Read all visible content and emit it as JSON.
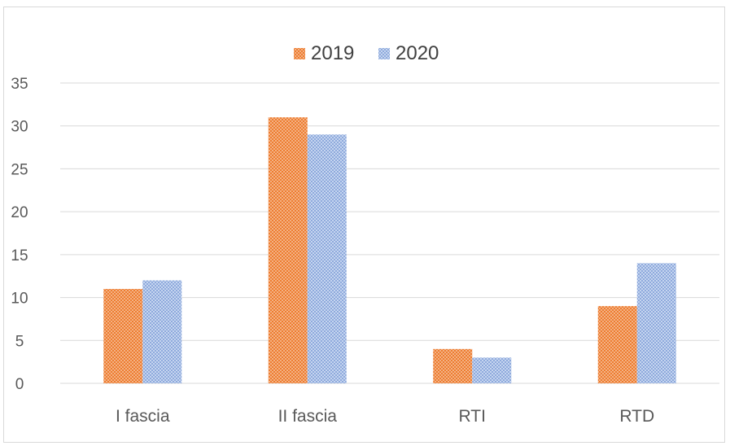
{
  "chart_data": {
    "type": "bar",
    "categories": [
      "I fascia",
      "II fascia",
      "RTI",
      "RTD"
    ],
    "series": [
      {
        "name": "2019",
        "values": [
          11,
          31,
          4,
          9
        ],
        "color": "#ED7D31"
      },
      {
        "name": "2020",
        "values": [
          12,
          29,
          3,
          14
        ],
        "color": "#8FAADC"
      }
    ],
    "ylim": [
      0,
      35
    ],
    "yticks": [
      0,
      5,
      10,
      15,
      20,
      25,
      30,
      35
    ],
    "grid": true,
    "legend_position": "top"
  }
}
